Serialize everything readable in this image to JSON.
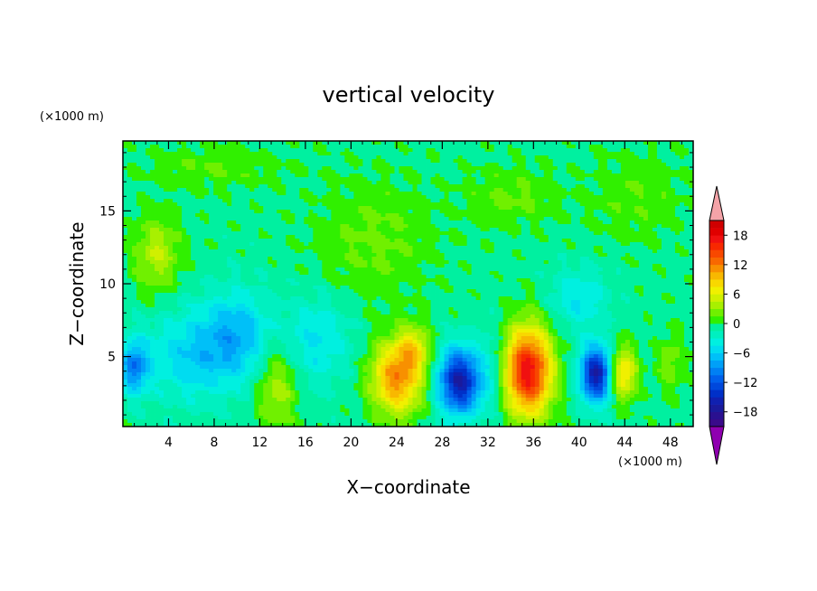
{
  "chart_data": {
    "type": "heatmap",
    "title": "vertical velocity",
    "xlabel": "X−coordinate",
    "ylabel": "Z−coordinate",
    "x_unit_label": "(×1000 m)",
    "y_unit_label": "(×1000 m)",
    "xlim": [
      0,
      50
    ],
    "ylim": [
      0.2,
      19.8
    ],
    "x_ticks": [
      4,
      8,
      12,
      16,
      20,
      24,
      28,
      32,
      36,
      40,
      44,
      48
    ],
    "y_ticks": [
      5,
      10,
      15
    ],
    "colorbar": {
      "levels": [
        -21,
        -19.5,
        -18,
        -16.5,
        -15,
        -13.5,
        -12,
        -10.5,
        -9,
        -7.5,
        -6,
        -4.5,
        -3,
        -1.5,
        0,
        1.5,
        3,
        4.5,
        6,
        7.5,
        9,
        10.5,
        12,
        13.5,
        15,
        16.5,
        18,
        19.5,
        21
      ],
      "tick_labels": [
        {
          "value": 18,
          "label": "18"
        },
        {
          "value": 12,
          "label": "12"
        },
        {
          "value": 6,
          "label": "6"
        },
        {
          "value": 0,
          "label": "0"
        },
        {
          "value": -6,
          "label": "−6"
        },
        {
          "value": -12,
          "label": "−12"
        },
        {
          "value": -18,
          "label": "−18"
        }
      ],
      "extend": "both",
      "over_color": "#f4a3a8",
      "under_color": "#8f00b0"
    },
    "features": [
      {
        "x": 1,
        "z": 4.3,
        "sx": 1.2,
        "sz": 1.8,
        "w": -9
      },
      {
        "x": 13.5,
        "z": 3,
        "sx": 1.8,
        "sz": 3,
        "w": 5
      },
      {
        "x": 24,
        "z": 3.5,
        "sx": 2.2,
        "sz": 2.5,
        "w": 12
      },
      {
        "x": 25.5,
        "z": 5.5,
        "sx": 1.4,
        "sz": 1.6,
        "w": 6
      },
      {
        "x": 29.5,
        "z": 3.3,
        "sx": 1.8,
        "sz": 2.2,
        "w": -16
      },
      {
        "x": 35.5,
        "z": 4,
        "sx": 2.1,
        "sz": 3,
        "w": 18
      },
      {
        "x": 41.5,
        "z": 3.8,
        "sx": 1.4,
        "sz": 1.9,
        "w": -16
      },
      {
        "x": 43.8,
        "z": 3.8,
        "sx": 1.2,
        "sz": 1.8,
        "w": 9
      },
      {
        "x": 48,
        "z": 4.5,
        "sx": 1.2,
        "sz": 2,
        "w": 3
      },
      {
        "x": 3,
        "z": 12,
        "sx": 2,
        "sz": 2.5,
        "w": 5
      },
      {
        "x": 6,
        "z": 5,
        "sx": 4,
        "sz": 3,
        "w": -5
      },
      {
        "x": 10,
        "z": 6.5,
        "sx": 3,
        "sz": 3,
        "w": -6
      },
      {
        "x": 17,
        "z": 6,
        "sx": 3,
        "sz": 3,
        "w": -4
      },
      {
        "x": 32.5,
        "z": 4,
        "sx": 1.4,
        "sz": 3,
        "w": -3
      },
      {
        "x": 40,
        "z": 9,
        "sx": 2.5,
        "sz": 2,
        "w": -4
      },
      {
        "x": 22,
        "z": 13,
        "sx": 5,
        "sz": 4,
        "w": 2.5
      },
      {
        "x": 34,
        "z": 16,
        "sx": 4,
        "sz": 2,
        "w": 2.5
      },
      {
        "x": 8,
        "z": 18,
        "sx": 6,
        "sz": 1.5,
        "w": 2
      },
      {
        "x": 45,
        "z": 16,
        "sx": 4,
        "sz": 3,
        "w": 2
      }
    ]
  }
}
